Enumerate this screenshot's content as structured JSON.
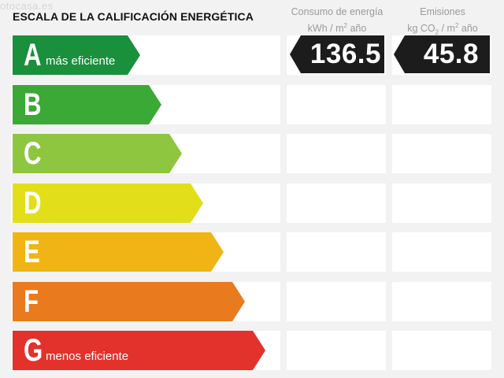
{
  "watermark": "otocasa.es",
  "title": "ESCALA DE LA CALIFICACIÓN ENERGÉTICA",
  "columns": {
    "consumo": {
      "line1": "Consumo de energía",
      "line2_pre": "kWh / m",
      "line2_sup": "2",
      "line2_post": " año"
    },
    "emisiones": {
      "line1": "Emisiones",
      "line2_pre": "kg CO",
      "line2_sub": "2",
      "line2_mid": " / m",
      "line2_sup": "2",
      "line2_post": " año"
    }
  },
  "ratings": [
    {
      "letter": "A",
      "label": "más eficiente",
      "color": "#1a8f3c"
    },
    {
      "letter": "B",
      "label": "",
      "color": "#3aa935"
    },
    {
      "letter": "C",
      "label": "",
      "color": "#8fc63f"
    },
    {
      "letter": "D",
      "label": "",
      "color": "#e2df1a"
    },
    {
      "letter": "E",
      "label": "",
      "color": "#f0b515"
    },
    {
      "letter": "F",
      "label": "",
      "color": "#e97a1e"
    },
    {
      "letter": "G",
      "label": "menos eficiente",
      "color": "#e2322b"
    }
  ],
  "values": {
    "consumo": "136.5",
    "emisiones": "45.8",
    "row": "A"
  }
}
